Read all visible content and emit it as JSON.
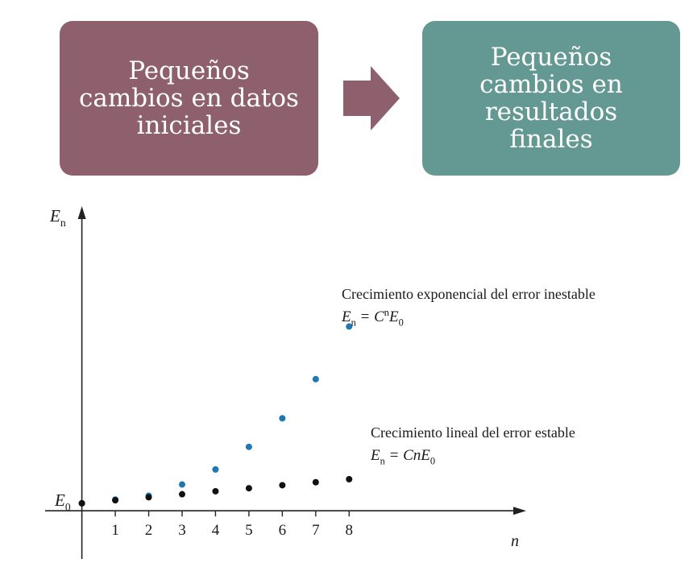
{
  "boxes": {
    "left_text": "Pequeños\ncambios en datos\niniciales",
    "right_text": "Pequeños\ncambios en\nresultados\nfinales"
  },
  "colors": {
    "left_box": "#8e5f6c",
    "right_box": "#649893",
    "arrow": "#8e5f6c",
    "unstable_points": "#1f78b4",
    "stable_points": "#111111"
  },
  "chart_data": {
    "type": "scatter",
    "xlabel": "n",
    "ylabel": "E",
    "ylabel_sub": "n",
    "y_tick_label": "E",
    "y_tick_label_sub": "0",
    "x_ticks": [
      1,
      2,
      3,
      4,
      5,
      6,
      7,
      8
    ],
    "x": [
      0,
      1,
      2,
      3,
      4,
      5,
      6,
      7,
      8
    ],
    "xlim": [
      -1.1,
      13.3
    ],
    "ylim": [
      -0.64,
      4.05
    ],
    "series": [
      {
        "name": "Crecimiento exponencial del error inestable",
        "formula": "En = CⁿE0",
        "formula_parts": [
          "E",
          "n",
          " = C",
          "n",
          "E",
          "0"
        ],
        "color": "#1f78b4",
        "values": [
          0.1,
          0.15,
          0.2,
          0.35,
          0.55,
          0.85,
          1.23,
          1.75,
          2.45
        ]
      },
      {
        "name": "Crecimiento lineal del error estable",
        "formula": "En = CnE0",
        "formula_parts": [
          "E",
          "n",
          " = CnE",
          "0"
        ],
        "color": "#111111",
        "values": [
          0.1,
          0.14,
          0.18,
          0.22,
          0.26,
          0.3,
          0.34,
          0.38,
          0.42
        ]
      }
    ],
    "y_scale_note": "unlabeled axis"
  }
}
